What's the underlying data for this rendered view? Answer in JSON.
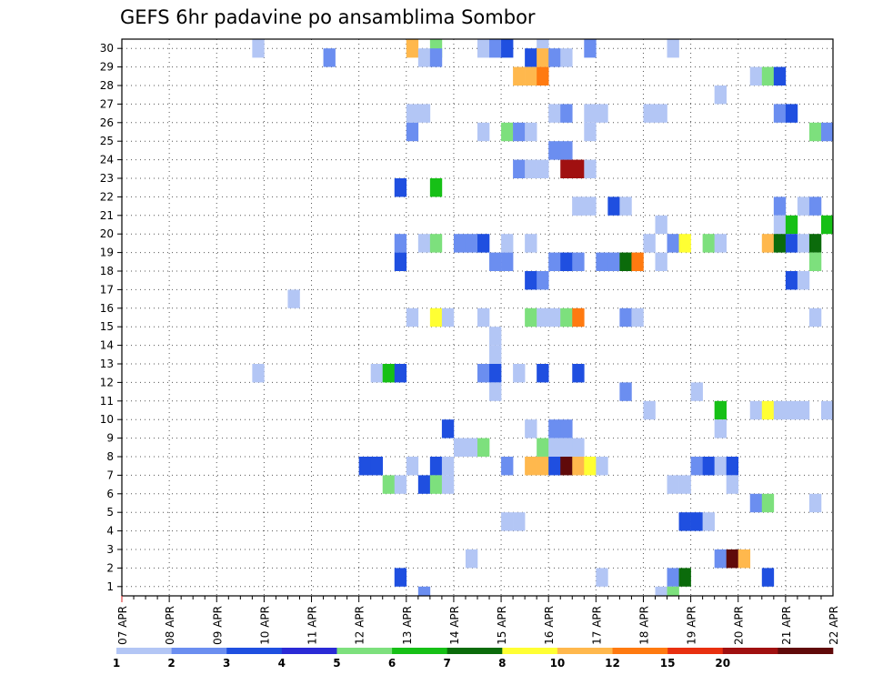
{
  "chart_data": {
    "type": "heatmap",
    "title": "GEFS 6hr padavine po ansamblima Sombor",
    "x_dates": [
      "07 APR",
      "08 APR",
      "09 APR",
      "10 APR",
      "11 APR",
      "12 APR",
      "13 APR",
      "14 APR",
      "15 APR",
      "16 APR",
      "17 APR",
      "18 APR",
      "19 APR",
      "20 APR",
      "21 APR",
      "22 APR"
    ],
    "y_labels": [
      "1",
      "2",
      "3",
      "4",
      "5",
      "6",
      "7",
      "8",
      "9",
      "10",
      "11",
      "12",
      "13",
      "14",
      "15",
      "16",
      "17",
      "18",
      "19",
      "20",
      "21",
      "22",
      "23",
      "24",
      "25",
      "26",
      "27",
      "28",
      "29",
      "30"
    ],
    "x_step_per_day": 4,
    "grid": "dotted",
    "legend_placement": "bottom",
    "legend": {
      "labels": [
        "1",
        "2",
        "3",
        "4",
        "5",
        "6",
        "7",
        "8",
        "10",
        "12",
        "15",
        "20"
      ],
      "colors": [
        "#b3c6f5",
        "#6b8ef0",
        "#1f4fe0",
        "#2a2ad6",
        "#7de07d",
        "#16c016",
        "#0b6b0b",
        "#ffff33",
        "#ffb84d",
        "#ff7a10",
        "#e83010",
        "#a01010",
        "#600a0a"
      ]
    },
    "cells": [
      [
        30,
        11,
        0
      ],
      [
        30,
        24,
        8
      ],
      [
        30,
        26,
        4
      ],
      [
        30,
        30,
        0
      ],
      [
        30,
        31,
        1
      ],
      [
        30,
        32,
        2
      ],
      [
        30,
        35,
        0
      ],
      [
        30,
        39,
        1
      ],
      [
        30,
        46,
        0
      ],
      [
        29,
        17,
        1
      ],
      [
        29,
        25,
        0
      ],
      [
        29,
        26,
        1
      ],
      [
        29,
        34,
        2
      ],
      [
        29,
        35,
        8
      ],
      [
        29,
        36,
        1
      ],
      [
        29,
        37,
        0
      ],
      [
        28,
        33,
        8
      ],
      [
        28,
        34,
        8
      ],
      [
        28,
        35,
        9
      ],
      [
        28,
        53,
        0
      ],
      [
        28,
        54,
        4
      ],
      [
        28,
        55,
        2
      ],
      [
        27,
        50,
        0
      ],
      [
        26,
        24,
        0
      ],
      [
        26,
        25,
        0
      ],
      [
        26,
        36,
        0
      ],
      [
        26,
        37,
        1
      ],
      [
        26,
        39,
        0
      ],
      [
        26,
        40,
        0
      ],
      [
        26,
        44,
        0
      ],
      [
        26,
        45,
        0
      ],
      [
        26,
        55,
        1
      ],
      [
        26,
        56,
        2
      ],
      [
        25,
        24,
        1
      ],
      [
        25,
        30,
        0
      ],
      [
        25,
        32,
        4
      ],
      [
        25,
        33,
        1
      ],
      [
        25,
        34,
        0
      ],
      [
        25,
        39,
        0
      ],
      [
        25,
        58,
        4
      ],
      [
        25,
        59,
        1
      ],
      [
        24,
        36,
        1
      ],
      [
        24,
        37,
        1
      ],
      [
        23,
        33,
        1
      ],
      [
        23,
        34,
        0
      ],
      [
        23,
        35,
        0
      ],
      [
        23,
        37,
        11
      ],
      [
        23,
        38,
        11
      ],
      [
        23,
        39,
        0
      ],
      [
        22,
        23,
        2
      ],
      [
        22,
        26,
        5
      ],
      [
        21,
        38,
        0
      ],
      [
        21,
        39,
        0
      ],
      [
        21,
        38,
        0
      ],
      [
        21,
        41,
        2
      ],
      [
        21,
        42,
        0
      ],
      [
        21,
        55,
        1
      ],
      [
        21,
        57,
        0
      ],
      [
        21,
        58,
        1
      ],
      [
        20,
        45,
        0
      ],
      [
        20,
        55,
        0
      ],
      [
        20,
        56,
        5
      ],
      [
        20,
        59,
        5
      ],
      [
        19,
        23,
        1
      ],
      [
        19,
        25,
        0
      ],
      [
        19,
        26,
        4
      ],
      [
        19,
        28,
        1
      ],
      [
        19,
        29,
        1
      ],
      [
        19,
        30,
        2
      ],
      [
        19,
        32,
        0
      ],
      [
        19,
        34,
        0
      ],
      [
        19,
        44,
        0
      ],
      [
        19,
        46,
        1
      ],
      [
        19,
        47,
        7
      ],
      [
        19,
        49,
        4
      ],
      [
        19,
        50,
        0
      ],
      [
        19,
        54,
        8
      ],
      [
        19,
        55,
        6
      ],
      [
        19,
        56,
        2
      ],
      [
        19,
        57,
        0
      ],
      [
        19,
        58,
        6
      ],
      [
        18,
        23,
        2
      ],
      [
        18,
        31,
        1
      ],
      [
        18,
        32,
        1
      ],
      [
        18,
        36,
        1
      ],
      [
        18,
        37,
        2
      ],
      [
        18,
        38,
        1
      ],
      [
        18,
        40,
        1
      ],
      [
        18,
        41,
        1
      ],
      [
        18,
        42,
        6
      ],
      [
        18,
        43,
        9
      ],
      [
        18,
        45,
        0
      ],
      [
        18,
        58,
        4
      ],
      [
        17,
        34,
        2
      ],
      [
        17,
        35,
        1
      ],
      [
        17,
        56,
        2
      ],
      [
        17,
        57,
        0
      ],
      [
        16,
        14,
        0
      ],
      [
        15,
        24,
        0
      ],
      [
        15,
        26,
        7
      ],
      [
        15,
        27,
        0
      ],
      [
        15,
        30,
        0
      ],
      [
        15,
        34,
        4
      ],
      [
        15,
        35,
        0
      ],
      [
        15,
        36,
        0
      ],
      [
        15,
        37,
        4
      ],
      [
        15,
        38,
        9
      ],
      [
        15,
        42,
        1
      ],
      [
        15,
        43,
        0
      ],
      [
        15,
        58,
        0
      ],
      [
        14,
        31,
        0
      ],
      [
        13,
        31,
        0
      ],
      [
        12,
        11,
        0
      ],
      [
        12,
        21,
        0
      ],
      [
        12,
        22,
        5
      ],
      [
        12,
        23,
        2
      ],
      [
        12,
        30,
        1
      ],
      [
        12,
        31,
        2
      ],
      [
        12,
        33,
        0
      ],
      [
        12,
        35,
        2
      ],
      [
        12,
        38,
        2
      ],
      [
        11,
        31,
        0
      ],
      [
        11,
        42,
        1
      ],
      [
        11,
        48,
        0
      ],
      [
        10,
        44,
        0
      ],
      [
        10,
        50,
        5
      ],
      [
        10,
        53,
        0
      ],
      [
        10,
        54,
        7
      ],
      [
        10,
        55,
        0
      ],
      [
        10,
        56,
        0
      ],
      [
        10,
        57,
        0
      ],
      [
        10,
        59,
        0
      ],
      [
        9,
        27,
        2
      ],
      [
        9,
        34,
        0
      ],
      [
        9,
        36,
        1
      ],
      [
        9,
        37,
        1
      ],
      [
        9,
        50,
        0
      ],
      [
        8,
        28,
        0
      ],
      [
        8,
        29,
        0
      ],
      [
        8,
        30,
        4
      ],
      [
        8,
        35,
        4
      ],
      [
        8,
        36,
        0
      ],
      [
        8,
        37,
        0
      ],
      [
        8,
        38,
        0
      ],
      [
        7,
        20,
        2
      ],
      [
        7,
        21,
        2
      ],
      [
        7,
        24,
        0
      ],
      [
        7,
        26,
        2
      ],
      [
        7,
        27,
        0
      ],
      [
        7,
        32,
        1
      ],
      [
        7,
        34,
        8
      ],
      [
        7,
        35,
        8
      ],
      [
        7,
        36,
        2
      ],
      [
        7,
        37,
        12
      ],
      [
        7,
        38,
        8
      ],
      [
        7,
        39,
        7
      ],
      [
        7,
        40,
        0
      ],
      [
        7,
        48,
        1
      ],
      [
        7,
        49,
        2
      ],
      [
        7,
        50,
        0
      ],
      [
        7,
        51,
        2
      ],
      [
        6,
        22,
        4
      ],
      [
        6,
        23,
        0
      ],
      [
        6,
        25,
        2
      ],
      [
        6,
        26,
        4
      ],
      [
        6,
        27,
        0
      ],
      [
        6,
        46,
        0
      ],
      [
        6,
        47,
        0
      ],
      [
        6,
        51,
        0
      ],
      [
        5,
        53,
        1
      ],
      [
        5,
        54,
        4
      ],
      [
        5,
        58,
        0
      ],
      [
        4,
        32,
        0
      ],
      [
        4,
        33,
        0
      ],
      [
        4,
        47,
        2
      ],
      [
        4,
        48,
        2
      ],
      [
        4,
        49,
        0
      ],
      [
        2,
        29,
        0
      ],
      [
        2,
        50,
        1
      ],
      [
        2,
        51,
        12
      ],
      [
        2,
        52,
        8
      ],
      [
        1,
        23,
        2
      ],
      [
        1,
        40,
        0
      ],
      [
        1,
        46,
        1
      ],
      [
        1,
        47,
        6
      ],
      [
        1,
        54,
        2
      ],
      [
        0,
        25,
        1
      ],
      [
        0,
        45,
        0
      ],
      [
        0,
        46,
        4
      ]
    ]
  }
}
